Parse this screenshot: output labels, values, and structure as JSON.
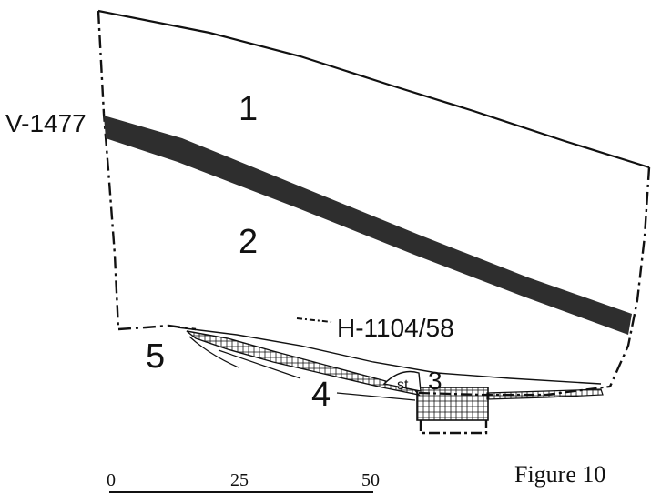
{
  "labels": {
    "layer_1": "1",
    "layer_2": "2",
    "layer_3": "3",
    "layer_4": "4",
    "layer_5": "5",
    "stone": "st",
    "section_v": "V-1477",
    "section_h": "H-1104/58"
  },
  "scale": {
    "tick_0": "0",
    "tick_25": "25",
    "tick_50": "50"
  },
  "caption": "Figure 10",
  "colors": {
    "ink": "#111111",
    "band": "#2e2e2e",
    "background": "#ffffff"
  }
}
